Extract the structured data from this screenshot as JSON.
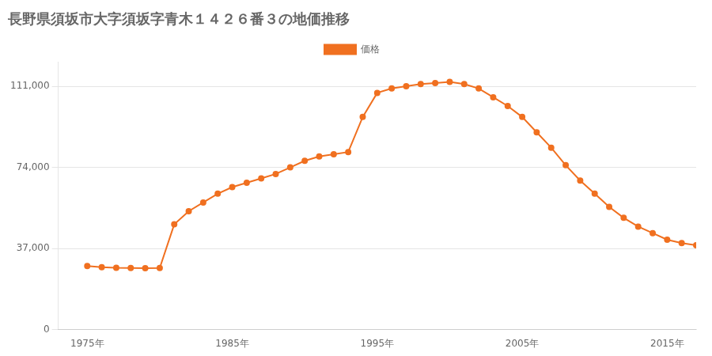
{
  "chart_data": {
    "type": "line",
    "title": "長野県須坂市大字須坂字青木１４２６番３の地価推移",
    "x": [
      1975,
      1976,
      1977,
      1978,
      1979,
      1980,
      1981,
      1982,
      1983,
      1984,
      1985,
      1986,
      1987,
      1988,
      1989,
      1990,
      1991,
      1992,
      1993,
      1994,
      1995,
      1996,
      1997,
      1998,
      1999,
      2000,
      2001,
      2002,
      2003,
      2004,
      2005,
      2006,
      2007,
      2008,
      2009,
      2010,
      2011,
      2012,
      2013,
      2014,
      2015,
      2016,
      2017
    ],
    "series": [
      {
        "name": "価格",
        "color": "#F07020",
        "marker": "circle",
        "values": [
          29000,
          28500,
          28200,
          28100,
          28000,
          28100,
          48000,
          54000,
          58000,
          62000,
          65000,
          67000,
          69000,
          71000,
          74000,
          77000,
          79000,
          80000,
          81000,
          97000,
          108000,
          110000,
          111000,
          112000,
          112500,
          113000,
          112000,
          110000,
          106000,
          102000,
          97000,
          90000,
          83000,
          75000,
          68000,
          62000,
          56000,
          51000,
          47000,
          44000,
          41000,
          39500,
          38500
        ]
      }
    ],
    "xlim": [
      1973,
      2017
    ],
    "xticks": [
      {
        "value": 1975,
        "label": "1975年"
      },
      {
        "value": 1985,
        "label": "1985年"
      },
      {
        "value": 1995,
        "label": "1995年"
      },
      {
        "value": 2005,
        "label": "2005年"
      },
      {
        "value": 2015,
        "label": "2015年"
      }
    ],
    "ylim": [
      0,
      122000
    ],
    "yticks": [
      0,
      {
        "value": 37000,
        "label": "37,000"
      },
      {
        "value": 74000,
        "label": "74,000"
      },
      {
        "value": 111000,
        "label": "111,000"
      }
    ],
    "grid": "y",
    "legend": "top"
  }
}
